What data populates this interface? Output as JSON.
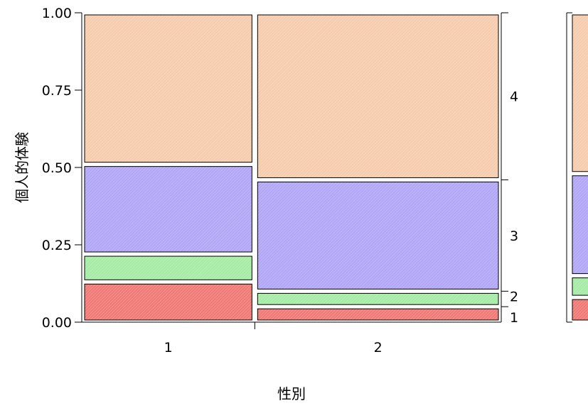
{
  "chart_data": {
    "type": "mosaic",
    "xlabel": "性別",
    "ylabel": "個人的体験",
    "ylim": [
      0,
      1
    ],
    "y_ticks": [
      "0.00",
      "0.25",
      "0.50",
      "0.75",
      "1.00"
    ],
    "categories": [
      "1",
      "2"
    ],
    "column_widths": [
      0.41,
      0.59
    ],
    "levels": [
      "1",
      "2",
      "3",
      "4"
    ],
    "series": [
      {
        "name": "1",
        "values": [
          0.13,
          0.05
        ]
      },
      {
        "name": "2",
        "values": [
          0.09,
          0.05
        ]
      },
      {
        "name": "3",
        "values": [
          0.29,
          0.36
        ]
      },
      {
        "name": "4",
        "values": [
          0.49,
          0.54
        ]
      }
    ],
    "overall_proportions": [
      0.08,
      0.07,
      0.33,
      0.52
    ],
    "right_axis_labels": [
      "1",
      "2",
      "3",
      "4"
    ],
    "colors": [
      "#f07a76",
      "#a6eba6",
      "#b2a6f6",
      "#f6ccae"
    ]
  }
}
